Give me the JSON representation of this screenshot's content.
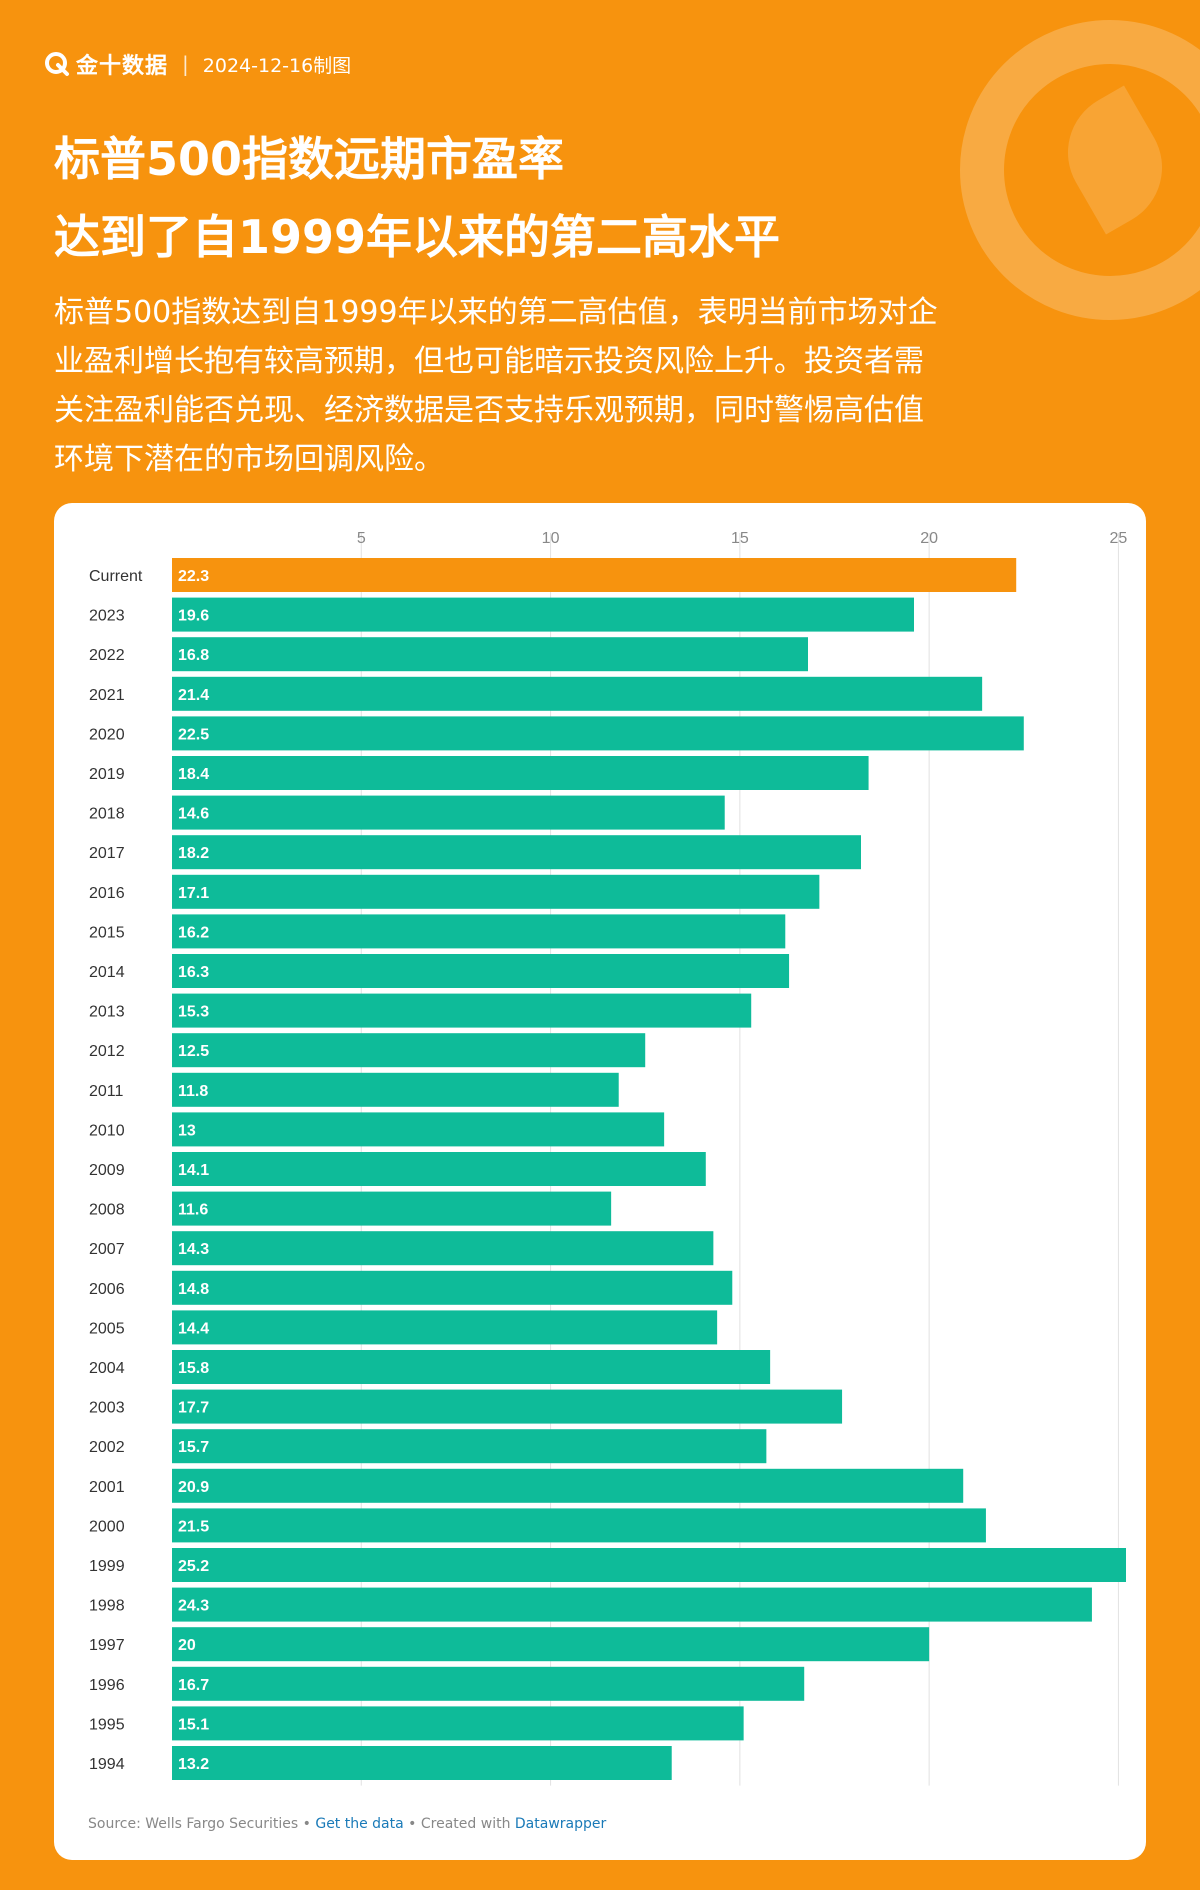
{
  "header": {
    "brand": "金十数据",
    "date": "2024-12-16制图"
  },
  "title": {
    "line1": "标普500指数远期市盈率",
    "line2": "达到了自1999年以来的第二高水平"
  },
  "description": [
    "标普500指数达到自1999年以来的第二高估值，表明当前市场对企",
    "业盈利增长抱有较高预期，但也可能暗示投资风险上升。投资者需",
    "关注盈利能否兑现、经济数据是否支持乐观预期，同时警惕高估值",
    "环境下潜在的市场回调风险。"
  ],
  "colors": {
    "background": "#F7930E",
    "highlight_bar": "#F7930E",
    "bar": "#0EBB99"
  },
  "chart_data": {
    "type": "bar",
    "orientation": "horizontal",
    "categories": [
      "Current",
      "2023",
      "2022",
      "2021",
      "2020",
      "2019",
      "2018",
      "2017",
      "2016",
      "2015",
      "2014",
      "2013",
      "2012",
      "2011",
      "2010",
      "2009",
      "2008",
      "2007",
      "2006",
      "2005",
      "2004",
      "2003",
      "2002",
      "2001",
      "2000",
      "1999",
      "1998",
      "1997",
      "1996",
      "1995",
      "1994"
    ],
    "values": [
      22.3,
      19.6,
      16.8,
      21.4,
      22.5,
      18.4,
      14.6,
      18.2,
      17.1,
      16.2,
      16.3,
      15.3,
      12.5,
      11.8,
      13,
      14.1,
      11.6,
      14.3,
      14.8,
      14.4,
      15.8,
      17.7,
      15.7,
      20.9,
      21.5,
      25.2,
      24.3,
      20,
      16.7,
      15.1,
      13.2
    ],
    "xticks": [
      5,
      10,
      15,
      20,
      25
    ],
    "xlim": [
      0,
      25.2
    ],
    "highlight": "Current",
    "grid": true
  },
  "footer": {
    "source": "Source: Wells Fargo Securities",
    "bullet": " • ",
    "get_data": "Get the data",
    "created_with": "Created with ",
    "datawrapper": "Datawrapper"
  }
}
